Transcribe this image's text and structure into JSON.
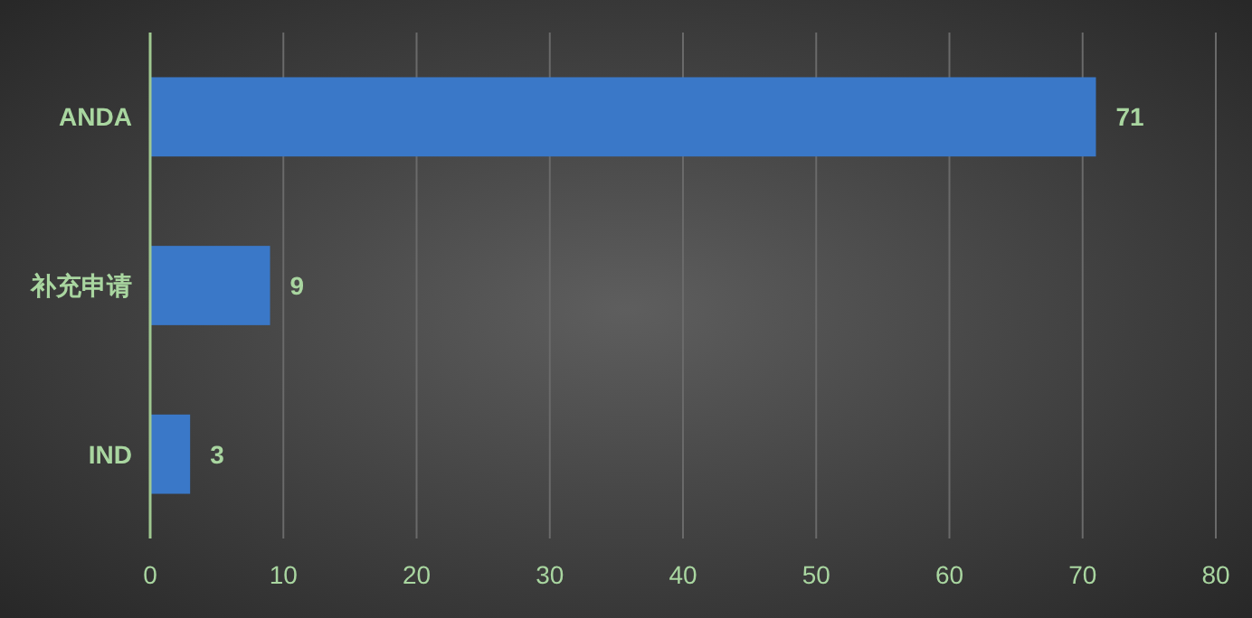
{
  "chart_data": {
    "type": "bar",
    "orientation": "horizontal",
    "categories": [
      "ANDA",
      "补充申请",
      "IND"
    ],
    "values": [
      71,
      9,
      3
    ],
    "color": "#3a78c8",
    "xlim": [
      0,
      80
    ],
    "xticks": [
      0,
      10,
      20,
      30,
      40,
      50,
      60,
      70,
      80
    ],
    "grid": "x",
    "data_labels": true
  }
}
